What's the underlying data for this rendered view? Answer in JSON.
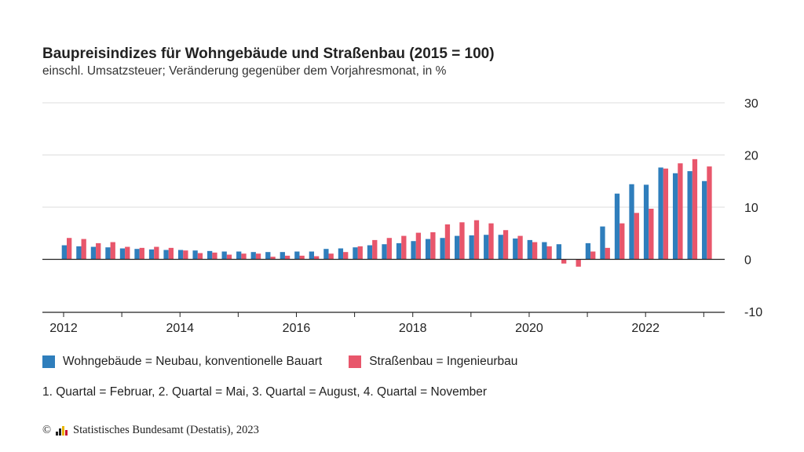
{
  "colors": {
    "series_1": "#2f7ebc",
    "series_2": "#e8566b",
    "grid": "#dddddd",
    "axis": "#222222",
    "zero_line": "#222222"
  },
  "note": "1. Quartal = Februar, 2. Quartal = Mai, 3. Quartal = August, 4. Quartal = November",
  "source": {
    "copyright_symbol": "©",
    "text": "Statistisches Bundesamt (Destatis), 2023"
  },
  "chart_data": {
    "type": "bar",
    "title": "Baupreisindizes für Wohngebäude und Straßenbau (2015 = 100)",
    "subtitle": "einschl. Umsatzsteuer; Veränderung gegenüber dem Vorjahresmonat, in %",
    "xlabel": "",
    "ylabel": "",
    "categories": [
      "2012-02",
      "2012-05",
      "2012-08",
      "2012-11",
      "2013-02",
      "2013-05",
      "2013-08",
      "2013-11",
      "2014-02",
      "2014-05",
      "2014-08",
      "2014-11",
      "2015-02",
      "2015-05",
      "2015-08",
      "2015-11",
      "2016-02",
      "2016-05",
      "2016-08",
      "2016-11",
      "2017-02",
      "2017-05",
      "2017-08",
      "2017-11",
      "2018-02",
      "2018-05",
      "2018-08",
      "2018-11",
      "2019-02",
      "2019-05",
      "2019-08",
      "2019-11",
      "2020-02",
      "2020-05",
      "2020-08",
      "2020-11",
      "2021-02",
      "2021-05",
      "2021-08",
      "2021-11",
      "2022-02",
      "2022-05",
      "2022-08",
      "2022-11",
      "2023-02"
    ],
    "x_tick_labels": [
      "2012",
      "2014",
      "2016",
      "2018",
      "2020",
      "2022"
    ],
    "y_tick_labels": [
      "30",
      "20",
      "10",
      "0",
      "-10"
    ],
    "ylim": [
      -10,
      30
    ],
    "grid": true,
    "y_axis_position": "right",
    "legend_position": "bottom",
    "series": [
      {
        "name": "Wohngebäude = Neubau, konventionelle Bauart",
        "values": [
          2.7,
          2.5,
          2.4,
          2.3,
          2.1,
          2.0,
          1.9,
          1.8,
          1.8,
          1.7,
          1.6,
          1.5,
          1.5,
          1.4,
          1.4,
          1.4,
          1.5,
          1.5,
          2.0,
          2.1,
          2.3,
          2.7,
          2.9,
          3.1,
          3.5,
          3.9,
          4.1,
          4.5,
          4.6,
          4.7,
          4.7,
          4.0,
          3.7,
          3.3,
          2.9,
          0.0,
          3.1,
          6.3,
          12.6,
          14.4,
          14.3,
          17.6,
          16.5,
          16.9,
          15.0
        ]
      },
      {
        "name": "Straßenbau = Ingenieurbau",
        "values": [
          4.1,
          3.9,
          3.1,
          3.3,
          2.4,
          2.2,
          2.4,
          2.2,
          1.7,
          1.2,
          1.3,
          0.9,
          1.1,
          1.1,
          0.5,
          0.7,
          0.7,
          0.6,
          1.1,
          1.4,
          2.5,
          3.7,
          4.1,
          4.5,
          5.1,
          5.2,
          6.7,
          7.1,
          7.5,
          6.9,
          5.6,
          4.5,
          3.3,
          2.5,
          -0.8,
          -1.4,
          1.5,
          2.2,
          6.9,
          8.9,
          9.7,
          17.4,
          18.4,
          19.2,
          17.8
        ]
      }
    ]
  }
}
